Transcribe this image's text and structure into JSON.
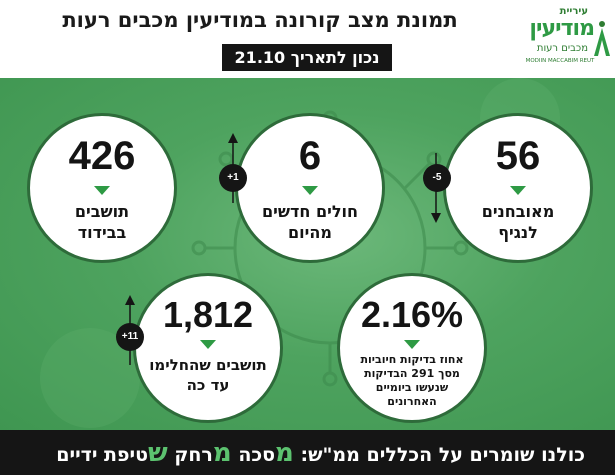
{
  "header": {
    "title": "תמונת מצב קורונה במודיעין מכבים רעות",
    "date_label": "נכון לתאריך 21.10"
  },
  "logo": {
    "top": "עיריית",
    "main": "מודיעין",
    "sub": "מכבים רעות",
    "en": "MODIIN MACCABIM REUT"
  },
  "stats": [
    {
      "value": "56",
      "label_line1": "מאובחנים",
      "label_line2": "לנגיף",
      "change": "-5"
    },
    {
      "value": "6",
      "label_line1": "חולים חדשים",
      "label_line2": "מהיום",
      "change": "+1"
    },
    {
      "value": "426",
      "label_line1": "תושבים",
      "label_line2": "בבידוד",
      "change": ""
    },
    {
      "value": "2.16%",
      "label_line1": "אחוז בדיקות חיוביות",
      "label_line2": "מסך 291 הבדיקות",
      "label_line3": "שנעשו ביומיים",
      "label_line4": "האחרונים",
      "change": ""
    },
    {
      "value": "1,812",
      "label_line1": "תושבים שהחלימו",
      "label_line2": "עד כה",
      "change": "+11"
    }
  ],
  "footer": {
    "prefix": "כולנו שומרים על הכללים ממ\"ש:",
    "item1_letter": "מ",
    "item1_rest": "סכה",
    "item2_letter": "מ",
    "item2_rest": "רחק",
    "item3_letter": "ש",
    "item3_rest": "טיפת ידיים"
  },
  "colors": {
    "green_bg": "#4ea35f",
    "accent_green": "#2e9a44",
    "dark": "#151515"
  }
}
